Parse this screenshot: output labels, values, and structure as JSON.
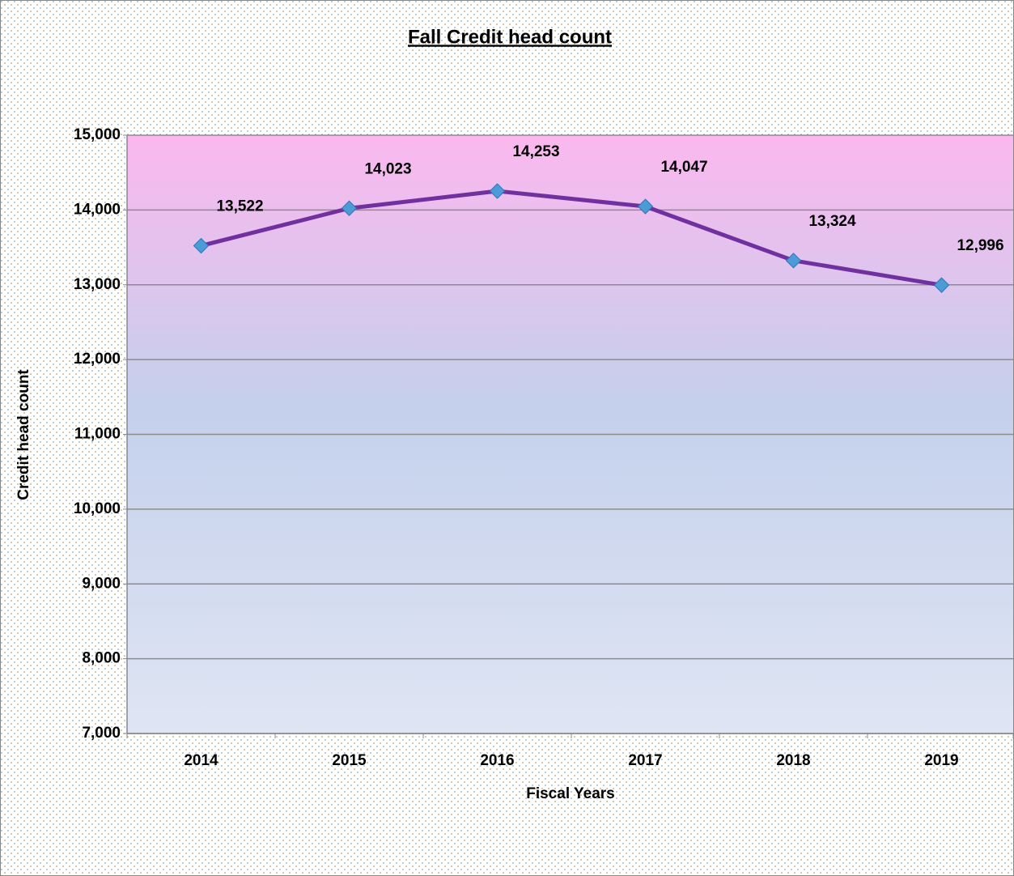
{
  "chart_data": {
    "type": "line",
    "title": "Fall Credit  head count",
    "x_label": "Fiscal Years",
    "y_label": "Credit head count",
    "categories": [
      "2014",
      "2015",
      "2016",
      "2017",
      "2018",
      "2019"
    ],
    "series": [
      {
        "name": "Credit head count",
        "color": "#7030a0",
        "marker_color": "#4a9bd6",
        "values": [
          13522,
          14023,
          14253,
          14047,
          13324,
          12996
        ],
        "value_labels": [
          "13,522",
          "14,023",
          "14,253",
          "14,047",
          "13,324",
          "12,996"
        ]
      }
    ],
    "ylim": [
      7000,
      15000
    ],
    "yticks": [
      {
        "value": 7000,
        "label": "7,000"
      },
      {
        "value": 8000,
        "label": "8,000"
      },
      {
        "value": 9000,
        "label": "9,000"
      },
      {
        "value": 10000,
        "label": "10,000"
      },
      {
        "value": 11000,
        "label": "11,000"
      },
      {
        "value": 12000,
        "label": "12,000"
      },
      {
        "value": 13000,
        "label": "13,000"
      },
      {
        "value": 14000,
        "label": "14,000"
      },
      {
        "value": 15000,
        "label": "15,000"
      }
    ],
    "grid": true
  }
}
